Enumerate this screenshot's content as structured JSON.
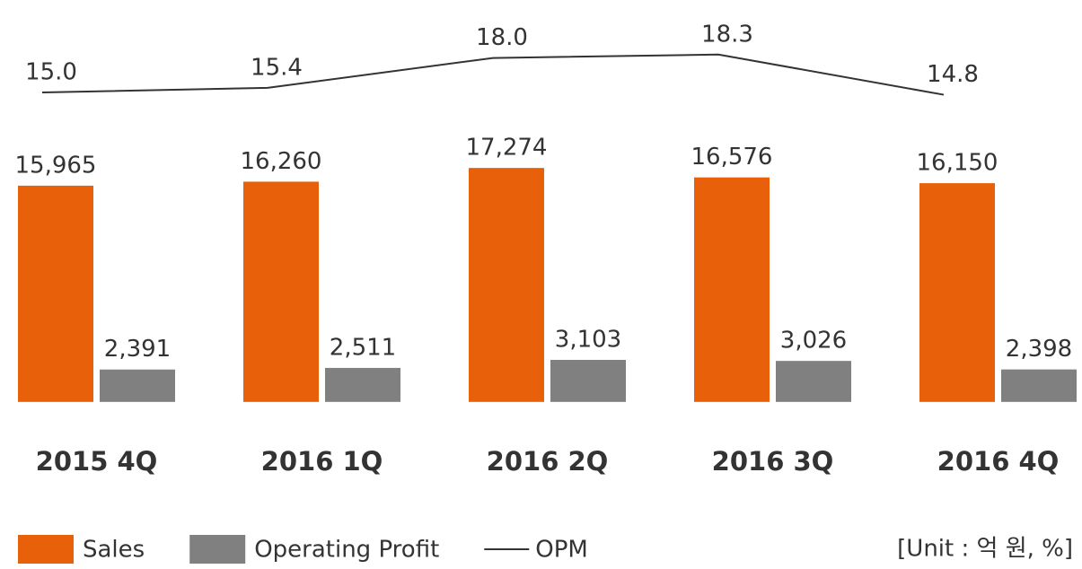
{
  "chart_data": {
    "type": "bar",
    "categories": [
      "2015 4Q",
      "2016 1Q",
      "2016 2Q",
      "2016 3Q",
      "2016 4Q"
    ],
    "series": [
      {
        "name": "Sales",
        "color": "#e8600a",
        "values": [
          15965,
          16260,
          17274,
          16576,
          16150
        ],
        "value_labels": [
          "15,965",
          "16,260",
          "17,274",
          "16,576",
          "16,150"
        ]
      },
      {
        "name": "Operating Profit",
        "color": "#808080",
        "values": [
          2391,
          2511,
          3103,
          3026,
          2398
        ],
        "value_labels": [
          "2,391",
          "2,511",
          "3,103",
          "3,026",
          "2,398"
        ]
      },
      {
        "name": "OPM",
        "type": "line",
        "axis": "y2",
        "color": "#333333",
        "values": [
          15.0,
          15.4,
          18.0,
          18.3,
          14.8
        ],
        "value_labels": [
          "15.0",
          "15.4",
          "18.0",
          "18.3",
          "14.8"
        ]
      }
    ],
    "ylim": [
      -2000,
      20000
    ],
    "y2lim": [
      10,
      20
    ],
    "unit_note": "[Unit : 억 원, %]"
  }
}
